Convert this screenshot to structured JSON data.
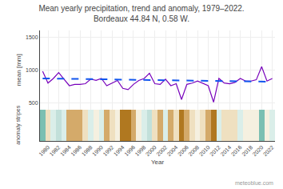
{
  "chart_data": [
    {
      "type": "line",
      "title": "Mean yearly precipitation, trend and anomaly, 1979–2022.",
      "subtitle": "Bordeaux 44.84 N, 0.58 W.",
      "y_label": "mean [mm]",
      "x": [
        1979,
        1980,
        1981,
        1982,
        1983,
        1984,
        1985,
        1986,
        1987,
        1988,
        1989,
        1990,
        1991,
        1992,
        1993,
        1994,
        1995,
        1996,
        1997,
        1998,
        1999,
        2000,
        2001,
        2002,
        2003,
        2004,
        2005,
        2006,
        2007,
        2008,
        2009,
        2010,
        2011,
        2012,
        2013,
        2014,
        2015,
        2016,
        2017,
        2018,
        2019,
        2020,
        2021,
        2022
      ],
      "series": [
        {
          "color": "#7700bb",
          "line_style": "solid",
          "values": [
            980,
            800,
            870,
            960,
            860,
            760,
            780,
            780,
            790,
            860,
            840,
            870,
            760,
            800,
            840,
            720,
            700,
            780,
            840,
            870,
            950,
            790,
            780,
            860,
            760,
            790,
            550,
            780,
            800,
            830,
            790,
            760,
            510,
            870,
            800,
            790,
            810,
            870,
            830,
            830,
            850,
            1050,
            830,
            870
          ]
        },
        {
          "color": "#1155ee",
          "line_style": "dashed",
          "x": [
            1979,
            2022
          ],
          "values": [
            870,
            820
          ]
        }
      ],
      "xlim": [
        1978.5,
        2022.5
      ],
      "xticks": [
        1980,
        1982,
        1984,
        1986,
        1988,
        1990,
        1992,
        1994,
        1996,
        1998,
        2000,
        2002,
        2004,
        2006,
        2008,
        2010,
        2012,
        2014,
        2016,
        2018,
        2020,
        2022
      ],
      "ylim": [
        400,
        1600
      ],
      "yticks": [
        500,
        1000,
        1500
      ],
      "grid": true,
      "tick_labels": "y",
      "annotations": [
        "meteoblue.com"
      ]
    },
    {
      "type": "bar",
      "x_label": "Year",
      "y_label": "anomaly stripes",
      "x": [
        1979,
        1980,
        1981,
        1982,
        1983,
        1984,
        1985,
        1986,
        1987,
        1988,
        1989,
        1990,
        1991,
        1992,
        1993,
        1994,
        1995,
        1996,
        1997,
        1998,
        1999,
        2000,
        2001,
        2002,
        2003,
        2004,
        2005,
        2006,
        2007,
        2008,
        2009,
        2010,
        2011,
        2012,
        2013,
        2014,
        2015,
        2016,
        2017,
        2018,
        2019,
        2020,
        2021,
        2022
      ],
      "values": [
        1,
        1,
        1,
        1,
        1,
        1,
        1,
        1,
        1,
        1,
        1,
        1,
        1,
        1,
        1,
        1,
        1,
        1,
        1,
        1,
        1,
        1,
        1,
        1,
        1,
        1,
        1,
        1,
        1,
        1,
        1,
        1,
        1,
        1,
        1,
        1,
        1,
        1,
        1,
        1,
        1,
        1,
        1,
        1
      ],
      "colors": [
        "#7bbfb2",
        "#efe0c0",
        "#daeee9",
        "#c2e0da",
        "#daeee9",
        "#d4aa6a",
        "#d4aa6a",
        "#d4aa6a",
        "#efe0c0",
        "#daeee9",
        "#f5f0e0",
        "#daeee9",
        "#d4aa6a",
        "#efe0c0",
        "#f5f0e0",
        "#b07820",
        "#b07820",
        "#d4aa6a",
        "#f5f0e0",
        "#daeee9",
        "#c2e0da",
        "#efe0c0",
        "#d4aa6a",
        "#daeee9",
        "#d4aa6a",
        "#efe0c0",
        "#b07820",
        "#d4aa6a",
        "#efe0c0",
        "#f5f0e0",
        "#efe0c0",
        "#d4aa6a",
        "#b07820",
        "#daeee9",
        "#efe0c0",
        "#efe0c0",
        "#efe0c0",
        "#daeee9",
        "#f5f0e0",
        "#f5f0e0",
        "#f5f0e0",
        "#7bbfb2",
        "#f5f0e0",
        "#daeee9"
      ],
      "xlim": [
        1978.5,
        2022.5
      ],
      "xticks": [
        1980,
        1982,
        1984,
        1986,
        1988,
        1990,
        1992,
        1994,
        1996,
        1998,
        2000,
        2002,
        2004,
        2006,
        2008,
        2010,
        2012,
        2014,
        2016,
        2018,
        2020,
        2022
      ],
      "ylim": [
        0,
        1
      ],
      "grid": true,
      "tick_labels": "x"
    }
  ]
}
